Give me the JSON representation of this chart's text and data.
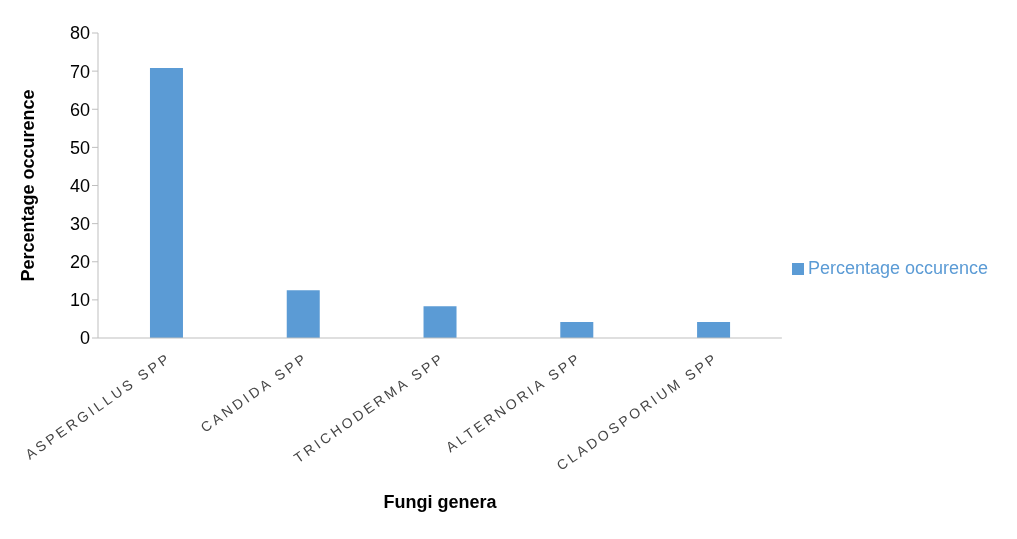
{
  "chart_data": {
    "type": "bar",
    "xlabel": "Fungi genera",
    "ylabel": "Percentage occurence",
    "categories": [
      "ASPERGILLUS SPP",
      "CANDIDA SPP",
      "TRICHODERMA SPP",
      "ALTERNORIA SPP",
      "CLADOSPORIUM SPP"
    ],
    "series": [
      {
        "name": "Percentage occurence",
        "color": "#5b9bd5",
        "values": [
          70.8,
          12.5,
          8.3,
          4.2,
          4.2
        ]
      }
    ],
    "ylim": [
      0,
      80
    ],
    "yticks": [
      0,
      10,
      20,
      30,
      40,
      50,
      60,
      70,
      80
    ],
    "grid": false,
    "legend": "right"
  }
}
